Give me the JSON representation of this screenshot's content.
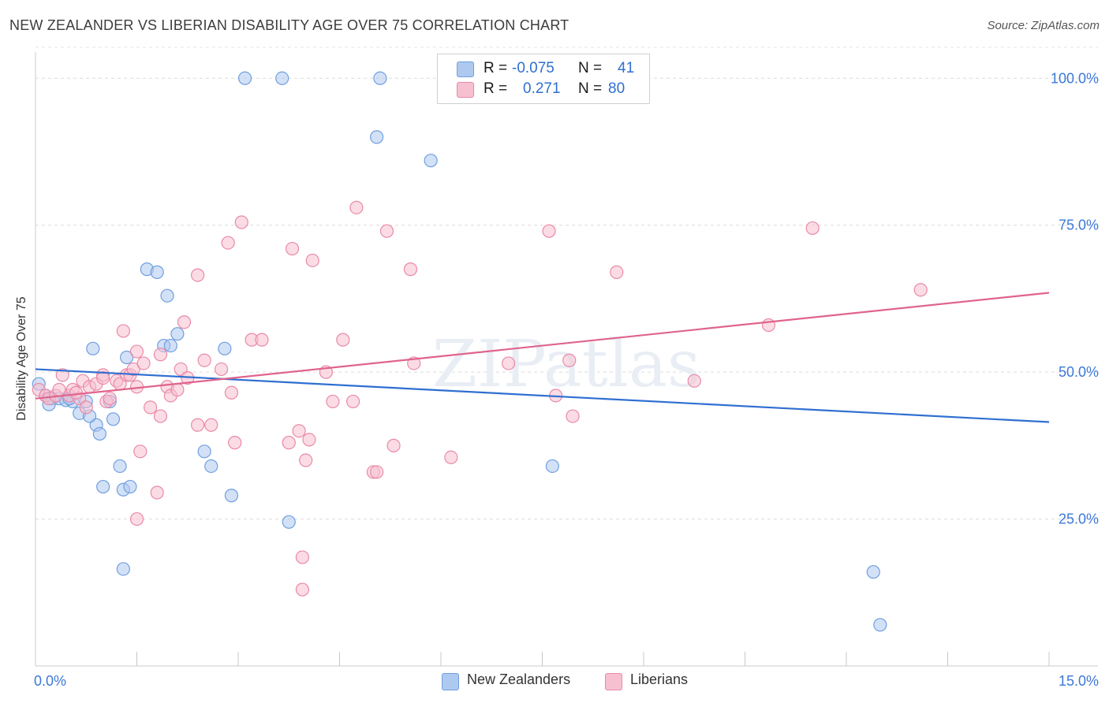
{
  "title": "NEW ZEALANDER VS LIBERIAN DISABILITY AGE OVER 75 CORRELATION CHART",
  "source": "Source: ZipAtlas.com",
  "watermark": "ZIPatlas",
  "legend": {
    "rows": [
      {
        "r_label": "R =",
        "r_value": "-0.075",
        "n_label": "N =",
        "n_value": "41",
        "color": "#aec9f0",
        "border": "#6f9fe0"
      },
      {
        "r_label": "R =",
        "r_value": "0.271",
        "n_label": "N =",
        "n_value": "80",
        "color": "#f7c0d0",
        "border": "#e98aa8"
      }
    ]
  },
  "bottom_legend": [
    {
      "label": "New Zealanders",
      "color": "#aec9f0",
      "border": "#6f9fe0"
    },
    {
      "label": "Liberians",
      "color": "#f7c0d0",
      "border": "#e98aa8"
    }
  ],
  "chart_data": {
    "type": "scatter",
    "title": "NEW ZEALANDER VS LIBERIAN DISABILITY AGE OVER 75 CORRELATION CHART",
    "xlabel": "",
    "ylabel": "Disability Age Over 75",
    "xlim": [
      0,
      15
    ],
    "ylim": [
      0,
      105
    ],
    "x_tick_labels": [
      "0.0%",
      "15.0%"
    ],
    "y_ticks": [
      25,
      50,
      75,
      100
    ],
    "y_tick_labels": [
      "25.0%",
      "50.0%",
      "75.0%",
      "100.0%"
    ],
    "grid": true,
    "legend_position": "top-center",
    "series": [
      {
        "name": "New Zealanders",
        "color": "#6f9fe0",
        "fill": "#aec9f0",
        "trend": {
          "x": [
            0,
            15
          ],
          "y": [
            50.5,
            41.5
          ],
          "color": "#2f6fd1"
        },
        "points": [
          [
            0.05,
            48
          ],
          [
            0.15,
            46
          ],
          [
            0.25,
            45.5
          ],
          [
            0.35,
            45.5
          ],
          [
            0.45,
            45.2
          ],
          [
            0.55,
            45
          ],
          [
            0.65,
            43
          ],
          [
            0.75,
            45
          ],
          [
            0.9,
            41
          ],
          [
            0.95,
            39.5
          ],
          [
            0.8,
            42.5
          ],
          [
            0.85,
            54
          ],
          [
            1.1,
            45
          ],
          [
            1.15,
            42
          ],
          [
            1.25,
            34
          ],
          [
            1.0,
            30.5
          ],
          [
            1.3,
            30
          ],
          [
            1.4,
            30.5
          ],
          [
            1.3,
            16.5
          ],
          [
            1.35,
            52.5
          ],
          [
            1.65,
            67.5
          ],
          [
            1.8,
            67
          ],
          [
            1.95,
            63
          ],
          [
            1.9,
            54.5
          ],
          [
            2.0,
            54.5
          ],
          [
            2.1,
            56.5
          ],
          [
            2.8,
            54
          ],
          [
            2.5,
            36.5
          ],
          [
            2.6,
            34
          ],
          [
            2.9,
            29
          ],
          [
            3.1,
            100
          ],
          [
            3.65,
            100
          ],
          [
            5.1,
            100
          ],
          [
            5.05,
            90
          ],
          [
            5.85,
            86
          ],
          [
            3.75,
            24.5
          ],
          [
            7.65,
            34
          ],
          [
            12.4,
            16
          ],
          [
            12.5,
            7
          ],
          [
            0.5,
            45.5
          ],
          [
            0.2,
            44.5
          ]
        ]
      },
      {
        "name": "Liberians",
        "color": "#e98aa8",
        "fill": "#f7c0d0",
        "trend": {
          "x": [
            0,
            15
          ],
          "y": [
            45.5,
            63.5
          ],
          "color": "#e0648c"
        },
        "points": [
          [
            0.05,
            47
          ],
          [
            0.15,
            46
          ],
          [
            0.2,
            45.5
          ],
          [
            0.3,
            46
          ],
          [
            0.4,
            49.5
          ],
          [
            0.5,
            46
          ],
          [
            0.55,
            47
          ],
          [
            0.65,
            45.5
          ],
          [
            0.7,
            48.5
          ],
          [
            0.75,
            44
          ],
          [
            0.8,
            47.5
          ],
          [
            0.9,
            48
          ],
          [
            1.0,
            49.5
          ],
          [
            1.05,
            45
          ],
          [
            1.1,
            45.5
          ],
          [
            1.2,
            48.5
          ],
          [
            1.25,
            48
          ],
          [
            1.3,
            57
          ],
          [
            1.35,
            49.5
          ],
          [
            1.4,
            49.5
          ],
          [
            1.45,
            50.5
          ],
          [
            1.5,
            47.5
          ],
          [
            1.5,
            53.5
          ],
          [
            1.55,
            36.5
          ],
          [
            1.5,
            25
          ],
          [
            1.6,
            51.5
          ],
          [
            1.7,
            44
          ],
          [
            1.8,
            29.5
          ],
          [
            1.85,
            42.5
          ],
          [
            1.85,
            53
          ],
          [
            1.95,
            47.5
          ],
          [
            2.0,
            46
          ],
          [
            2.1,
            47
          ],
          [
            2.15,
            50.5
          ],
          [
            2.2,
            58.5
          ],
          [
            2.25,
            49
          ],
          [
            2.4,
            66.5
          ],
          [
            2.4,
            41
          ],
          [
            2.5,
            52
          ],
          [
            2.6,
            41
          ],
          [
            2.75,
            50.5
          ],
          [
            2.85,
            72
          ],
          [
            2.9,
            46.5
          ],
          [
            2.95,
            38
          ],
          [
            3.05,
            75.5
          ],
          [
            3.2,
            55.5
          ],
          [
            3.35,
            55.5
          ],
          [
            3.75,
            38
          ],
          [
            3.8,
            71
          ],
          [
            3.9,
            40
          ],
          [
            3.95,
            13
          ],
          [
            3.95,
            18.5
          ],
          [
            4.0,
            35
          ],
          [
            4.05,
            38.5
          ],
          [
            4.1,
            69
          ],
          [
            4.3,
            50
          ],
          [
            4.4,
            45
          ],
          [
            4.55,
            55.5
          ],
          [
            4.7,
            45
          ],
          [
            4.75,
            78
          ],
          [
            5.0,
            33
          ],
          [
            5.05,
            33
          ],
          [
            5.2,
            74
          ],
          [
            5.3,
            37.5
          ],
          [
            5.55,
            67.5
          ],
          [
            5.6,
            51.5
          ],
          [
            6.15,
            35.5
          ],
          [
            7.0,
            51.5
          ],
          [
            7.6,
            74
          ],
          [
            7.7,
            46
          ],
          [
            7.9,
            52
          ],
          [
            7.95,
            42.5
          ],
          [
            8.6,
            67
          ],
          [
            9.75,
            48.5
          ],
          [
            10.85,
            58
          ],
          [
            11.5,
            74.5
          ],
          [
            13.1,
            64
          ],
          [
            1.0,
            49
          ],
          [
            0.6,
            46.5
          ],
          [
            0.35,
            47
          ]
        ]
      }
    ]
  }
}
